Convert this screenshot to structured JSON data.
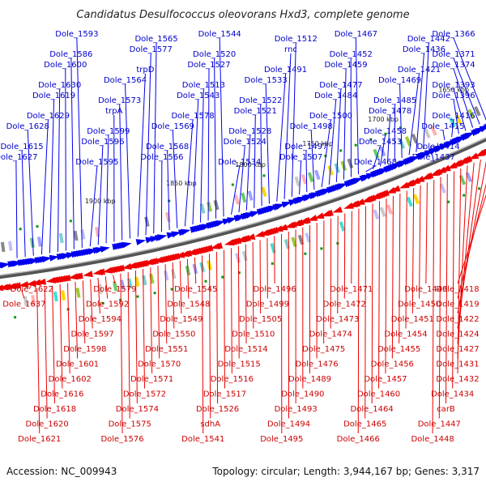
{
  "title": "Candidatus Desulfococcus oleovorans Hxd3, complete genome",
  "footer": {
    "accession": "Accession: NC_009943",
    "summary": "Topology: circular; Length: 3,944,167 bp; Genes: 3,317"
  },
  "colors": {
    "forward": "#0000ee",
    "reverse": "#ee0000",
    "backbone": "#555555"
  },
  "scale_labels": [
    "1650 kbp",
    "1700 kbp",
    "1750 kbp",
    "1800 kbp",
    "1850 kbp",
    "1900 kbp"
  ],
  "forward_genes": [
    "Dole_1366",
    "Dole_1371",
    "Dole_1374",
    "Dole_1393",
    "Dole_1396",
    "Dole_1416",
    "Dole_1415",
    "Dole_1414",
    "Dole_1437",
    "Dole_1442",
    "Dole_1436",
    "Dole_1421",
    "Dole_1469",
    "Dole_1485",
    "Dole_1478",
    "Dole_1458",
    "Dole_1453",
    "Dole_1468",
    "Dole_1467",
    "Dole_1452",
    "Dole_1459",
    "Dole_1477",
    "Dole_1484",
    "Dole_1500",
    "Dole_1498",
    "Dole_1497",
    "Dole_1507",
    "Dole_1512",
    "rnc",
    "Dole_1491",
    "Dole_1533",
    "Dole_1522",
    "Dole_1521",
    "Dole_1528",
    "Dole_1524",
    "Dole_1534",
    "Dole_1544",
    "Dole_1520",
    "Dole_1527",
    "Dole_1513",
    "Dole_1543",
    "Dole_1578",
    "Dole_1569",
    "Dole_1568",
    "Dole_1566",
    "Dole_1565",
    "Dole_1577",
    "trpD",
    "Dole_1564",
    "Dole_1573",
    "trpA",
    "Dole_1599",
    "Dole_1596",
    "Dole_1595",
    "Dole_1593",
    "Dole_1586",
    "Dole_1600",
    "Dole_1630",
    "Dole_1619",
    "Dole_1629",
    "Dole_1628",
    "Dole_1615",
    "Dole_1627"
  ],
  "reverse_genes": [
    "Dole_1418",
    "Dole_1419",
    "Dole_1422",
    "Dole_1424",
    "Dole_1427",
    "Dole_1431",
    "Dole_1432",
    "Dole_1434",
    "carB",
    "Dole_1447",
    "Dole_1448",
    "Dole_1449",
    "Dole_1450",
    "Dole_1451",
    "Dole_1454",
    "Dole_1455",
    "Dole_1456",
    "Dole_1457",
    "Dole_1460",
    "Dole_1464",
    "Dole_1465",
    "Dole_1466",
    "Dole_1471",
    "Dole_1472",
    "Dole_1473",
    "Dole_1474",
    "Dole_1475",
    "Dole_1476",
    "Dole_1489",
    "Dole_1490",
    "Dole_1493",
    "Dole_1494",
    "Dole_1495",
    "Dole_1496",
    "Dole_1499",
    "Dole_1505",
    "Dole_1510",
    "Dole_1514",
    "Dole_1515",
    "Dole_1516",
    "Dole_1517",
    "Dole_1526",
    "sdhA",
    "Dole_1541",
    "Dole_1545",
    "Dole_1548",
    "Dole_1549",
    "Dole_1550",
    "Dole_1551",
    "Dole_1570",
    "Dole_1571",
    "Dole_1572",
    "Dole_1574",
    "Dole_1575",
    "Dole_1576",
    "Dole_1579",
    "Dole_1592",
    "Dole_1594",
    "Dole_1597",
    "Dole_1598",
    "Dole_1601",
    "Dole_1602",
    "Dole_1616",
    "Dole_1618",
    "Dole_1620",
    "Dole_1621",
    "Dole_1622",
    "Dole_1637"
  ]
}
